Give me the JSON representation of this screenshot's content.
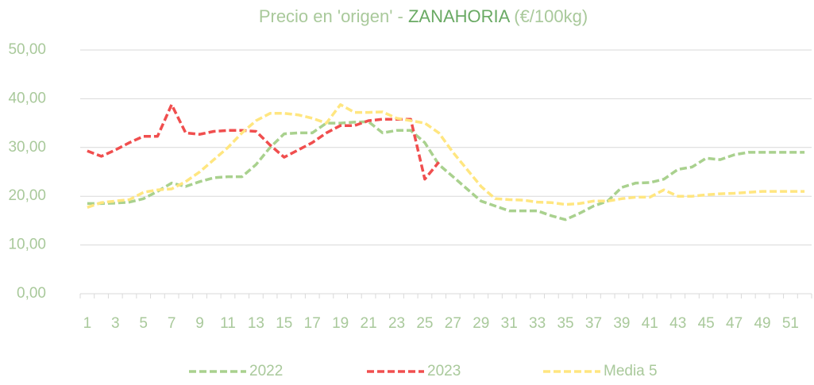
{
  "chart_data": {
    "type": "line",
    "title": [
      "Precio en 'origen' - ",
      "ZANAHORIA",
      " (€/100kg)"
    ],
    "categories": [
      1,
      null,
      3,
      null,
      5,
      null,
      7,
      null,
      9,
      null,
      11,
      null,
      13,
      null,
      15,
      null,
      17,
      null,
      19,
      null,
      21,
      null,
      23,
      null,
      25,
      null,
      27,
      null,
      29,
      null,
      31,
      null,
      33,
      null,
      35,
      null,
      37,
      null,
      39,
      null,
      41,
      null,
      43,
      null,
      45,
      null,
      47,
      null,
      49,
      null,
      51,
      null
    ],
    "series": [
      {
        "name": "2022",
        "color": "#a9d18e",
        "values": [
          18.5,
          18.5,
          18.6,
          18.8,
          19.5,
          21,
          22.7,
          22,
          23,
          23.8,
          24,
          24,
          26.5,
          30,
          32.8,
          33,
          33,
          35,
          35,
          35.2,
          35.3,
          33,
          33.5,
          33.5,
          31,
          26.5,
          24,
          21.5,
          19,
          18,
          17,
          17,
          17,
          16,
          15.2,
          16.5,
          18,
          19,
          21.8,
          22.7,
          22.8,
          23.5,
          25.5,
          26,
          27.8,
          27.5,
          28.5,
          29,
          29,
          29,
          29,
          29
        ]
      },
      {
        "name": "2023",
        "color": "#f04e4e",
        "values": [
          29.3,
          28.2,
          29.5,
          31,
          32.3,
          32.3,
          38.8,
          33,
          32.7,
          33.3,
          33.5,
          33.5,
          33.3,
          30.5,
          28,
          29.5,
          31,
          33,
          34.5,
          34.5,
          35.5,
          35.8,
          35.8,
          35.8,
          23.5,
          27,
          null,
          null,
          null,
          null,
          null,
          null,
          null,
          null,
          null,
          null,
          null,
          null,
          null,
          null,
          null,
          null,
          null,
          null,
          null,
          null,
          null,
          null,
          null,
          null,
          null,
          null
        ]
      },
      {
        "name": "Media 5",
        "color": "#ffe680",
        "values": [
          17.7,
          18.7,
          19,
          19.3,
          20.8,
          21.3,
          21.5,
          23,
          25,
          27.5,
          30,
          33,
          35.5,
          37,
          37,
          36.7,
          36,
          35,
          38.8,
          37.2,
          37.2,
          37.3,
          36,
          35.5,
          35,
          33,
          29,
          25.5,
          22,
          19.5,
          19.3,
          19.2,
          18.8,
          18.7,
          18.3,
          18.5,
          19,
          19,
          19.5,
          19.8,
          19.8,
          21.3,
          20,
          20,
          20.3,
          20.5,
          20.6,
          20.8,
          21,
          21,
          21,
          21
        ]
      }
    ],
    "ylim": [
      0,
      50
    ],
    "yticks": [
      {
        "value": 0,
        "label": "0,00"
      },
      {
        "value": 10,
        "label": "10,00"
      },
      {
        "value": 20,
        "label": "20,00"
      },
      {
        "value": 30,
        "label": "30,00"
      },
      {
        "value": 40,
        "label": "40,00"
      },
      {
        "value": 50,
        "label": "50,00"
      }
    ],
    "grid": true,
    "legend": "bottom"
  }
}
